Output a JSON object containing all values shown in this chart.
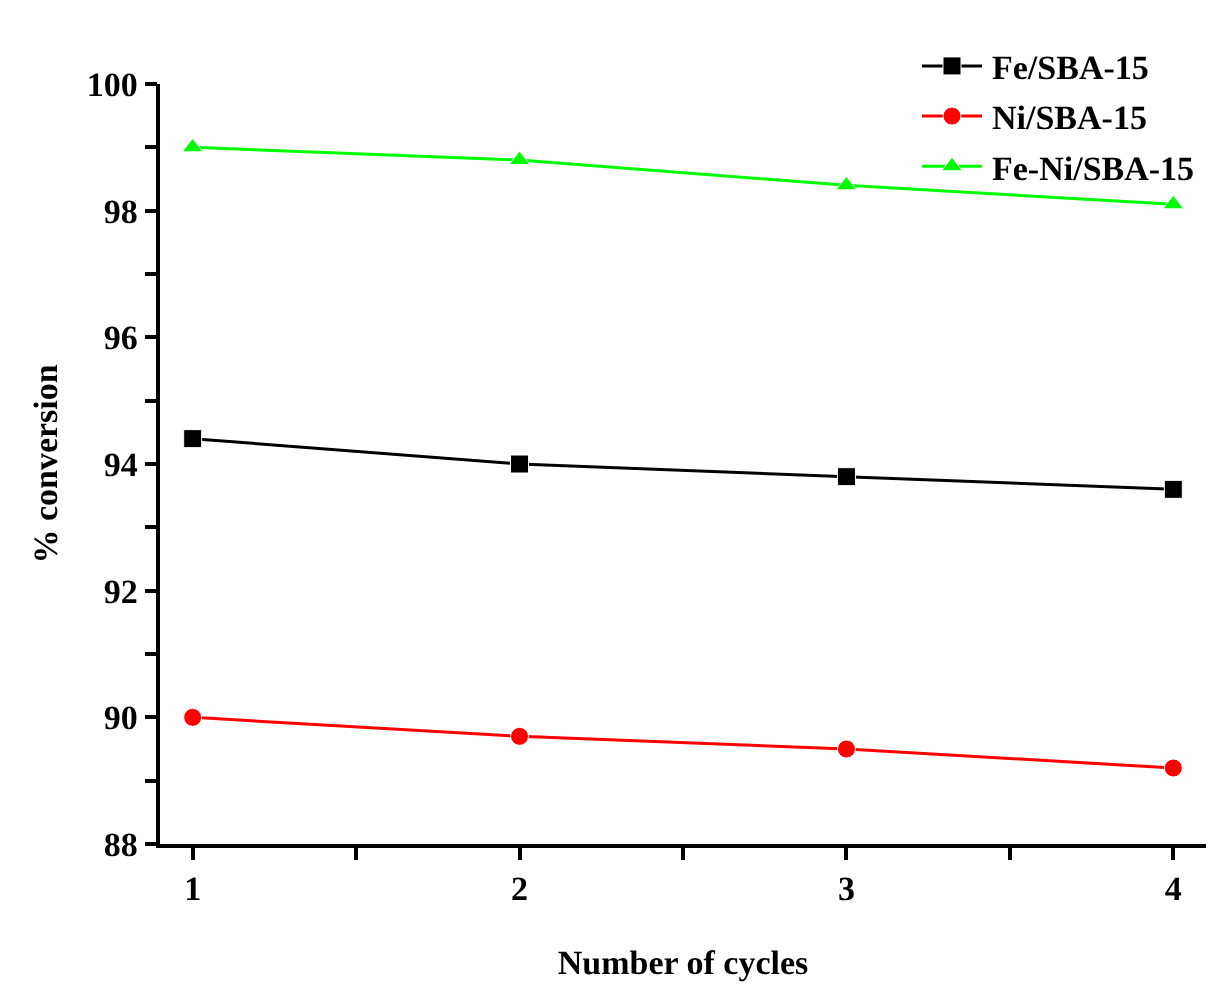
{
  "chart_data": {
    "type": "line",
    "xlabel": "Number of cycles",
    "ylabel": "% conversion",
    "x": [
      1,
      2,
      3,
      4
    ],
    "xlim": [
      0.9,
      4.1
    ],
    "xticks": [
      1,
      {
        "value": 1.5,
        "label": null
      },
      2,
      {
        "value": 2.5,
        "label": null
      },
      3,
      {
        "value": 3.5,
        "label": null
      },
      4
    ],
    "ylim": [
      88,
      100
    ],
    "yticks": [
      88,
      {
        "value": 89,
        "label": null
      },
      90,
      {
        "value": 91,
        "label": null
      },
      92,
      {
        "value": 93,
        "label": null
      },
      94,
      {
        "value": 95,
        "label": null
      },
      96,
      {
        "value": 97,
        "label": null
      },
      98,
      {
        "value": 99,
        "label": null
      },
      100
    ],
    "legend": "top right",
    "line_style": "solid",
    "series": [
      {
        "name": "Fe/SBA-15",
        "color": "#000000",
        "marker": "square",
        "values": [
          94.4,
          94.0,
          93.8,
          93.6
        ]
      },
      {
        "name": "Ni/SBA-15",
        "color": "#ff0000",
        "marker": "circle",
        "values": [
          90.0,
          89.7,
          89.5,
          89.2
        ]
      },
      {
        "name": "Fe-Ni/SBA-15",
        "color": "#00ff00",
        "marker": "triangle",
        "values": [
          99.0,
          98.8,
          98.4,
          98.1
        ]
      }
    ]
  }
}
